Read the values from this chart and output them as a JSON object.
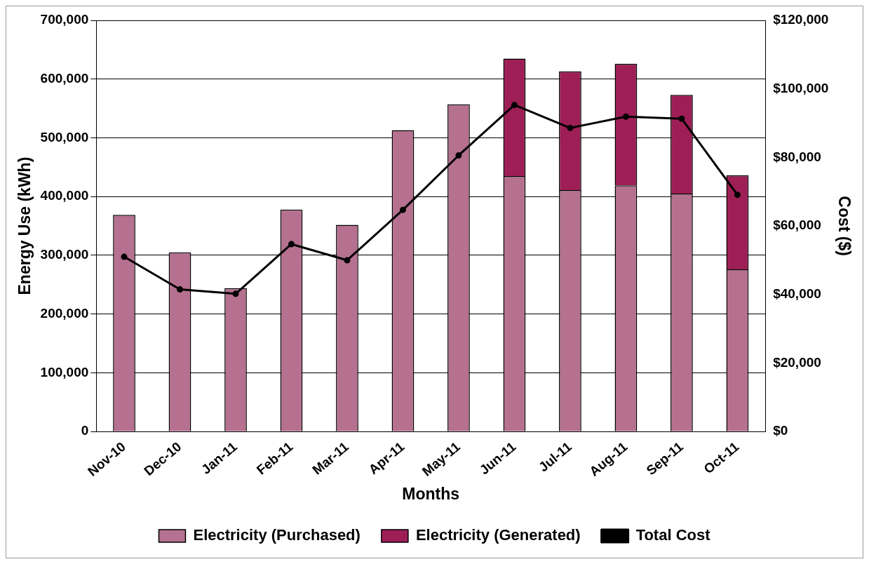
{
  "chart_data": {
    "type": "bar",
    "stacked": true,
    "xlabel": "Months",
    "ylabel": "Energy Use (kWh)",
    "y2label": "Cost ($)",
    "categories": [
      "Nov-10",
      "Dec-10",
      "Jan-11",
      "Feb-11",
      "Mar-11",
      "Apr-11",
      "May-11",
      "Jun-11",
      "Jul-11",
      "Aug-11",
      "Sep-11",
      "Oct-11"
    ],
    "series": [
      {
        "name": "Electricity (Purchased)",
        "color": "#b5718f",
        "values": [
          369000,
          305000,
          244000,
          378000,
          352000,
          513000,
          557000,
          435000,
          411000,
          419000,
          405000,
          276000
        ]
      },
      {
        "name": "Electricity (Generated)",
        "color": "#9e1f55",
        "values": [
          null,
          null,
          null,
          null,
          null,
          null,
          null,
          200000,
          202000,
          207000,
          168000,
          160000
        ]
      },
      {
        "name": "Total Cost",
        "type": "line",
        "axis": "y2",
        "color": "#000000",
        "marker": "circle",
        "values": [
          51000,
          41500,
          40200,
          54700,
          50000,
          64700,
          80600,
          95300,
          88600,
          91900,
          91300,
          69100
        ]
      }
    ],
    "ylim": [
      0,
      700000
    ],
    "yticks": [
      0,
      {
        "value": 100000,
        "label": "100,000"
      },
      {
        "value": 200000,
        "label": "200,000"
      },
      {
        "value": 300000,
        "label": "300,000"
      },
      {
        "value": 400000,
        "label": "400,000"
      },
      {
        "value": 500000,
        "label": "500,000"
      },
      {
        "value": 600000,
        "label": "600,000"
      },
      {
        "value": 700000,
        "label": "700,000"
      }
    ],
    "y2lim": [
      0,
      120000
    ],
    "y2ticks": [
      {
        "value": 0,
        "label": "$0"
      },
      {
        "value": 20000,
        "label": "$20,000"
      },
      {
        "value": 40000,
        "label": "$40,000"
      },
      {
        "value": 60000,
        "label": "$60,000"
      },
      {
        "value": 80000,
        "label": "$80,000"
      },
      {
        "value": 100000,
        "label": "$100,000"
      },
      {
        "value": 120000,
        "label": "$120,000"
      }
    ],
    "grid": "y",
    "legend": "bottom"
  }
}
